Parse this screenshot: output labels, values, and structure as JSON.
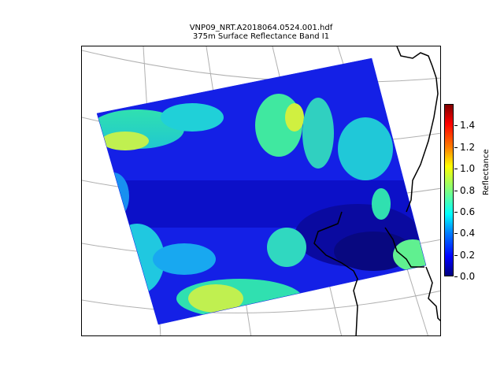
{
  "title": {
    "line1": "VNP09_NRT.A2018064.0524.001.hdf",
    "line2": "375m Surface Reflectance Band I1"
  },
  "colorbar": {
    "label": "Reflectance",
    "ticks": [
      "0.0",
      "0.2",
      "0.4",
      "0.6",
      "0.8",
      "1.0",
      "1.2",
      "1.4"
    ],
    "range": [
      0.0,
      1.6
    ],
    "colormap": "jet"
  },
  "map": {
    "graticule": true,
    "coastlines": true
  }
}
